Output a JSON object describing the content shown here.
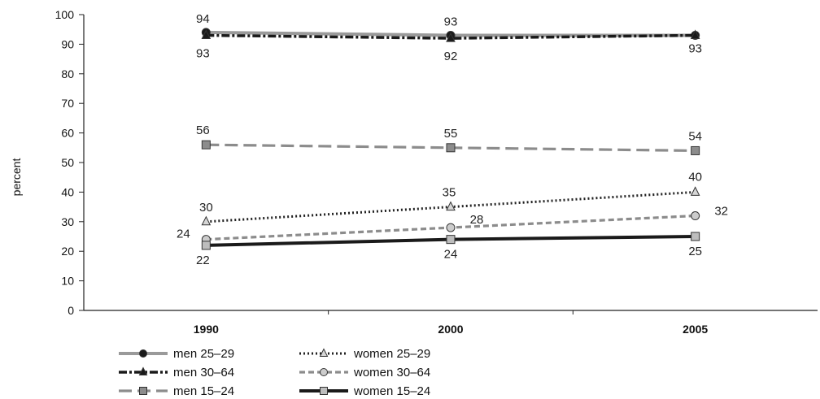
{
  "chart_data": {
    "type": "line",
    "title": "",
    "xlabel": "",
    "ylabel": "percent",
    "x": [
      "1990",
      "2000",
      "2005"
    ],
    "ylim": [
      0,
      100
    ],
    "yticks": [
      0,
      10,
      20,
      30,
      40,
      50,
      60,
      70,
      80,
      90,
      100
    ],
    "grid": false,
    "legend_position": "bottom-left",
    "series": [
      {
        "name": "men 25–29",
        "values": [
          94,
          93,
          93
        ],
        "labels": [
          "94",
          "93",
          ""
        ],
        "color": "#9a9a9a",
        "dash": "solid",
        "marker": "circle",
        "marker_fill": "#1a1a1a"
      },
      {
        "name": "men 30–64",
        "values": [
          93,
          92,
          93
        ],
        "labels": [
          "93",
          "92",
          "93"
        ],
        "color": "#1a1a1a",
        "dash": "dashdot",
        "marker": "triangle",
        "marker_fill": "#1a1a1a"
      },
      {
        "name": "men 15–24",
        "values": [
          56,
          55,
          54
        ],
        "labels": [
          "56",
          "55",
          "54"
        ],
        "color": "#8c8c8c",
        "dash": "longdash",
        "marker": "square",
        "marker_fill": "#8c8c8c"
      },
      {
        "name": "women 25–29",
        "values": [
          30,
          35,
          40
        ],
        "labels": [
          "30",
          "35",
          "40"
        ],
        "color": "#222222",
        "dash": "dotted",
        "marker": "triangle",
        "marker_fill": "#d6d6d6"
      },
      {
        "name": "women 30–64",
        "values": [
          24,
          28,
          32
        ],
        "labels": [
          "24",
          "28",
          "32"
        ],
        "color": "#8c8c8c",
        "dash": "dashed",
        "marker": "circle",
        "marker_fill": "#cccccc"
      },
      {
        "name": "women 15–24",
        "values": [
          22,
          24,
          25
        ],
        "labels": [
          "22",
          "24",
          "25"
        ],
        "color": "#1a1a1a",
        "dash": "solid",
        "marker": "square",
        "marker_fill": "#bdbdbd"
      }
    ]
  }
}
